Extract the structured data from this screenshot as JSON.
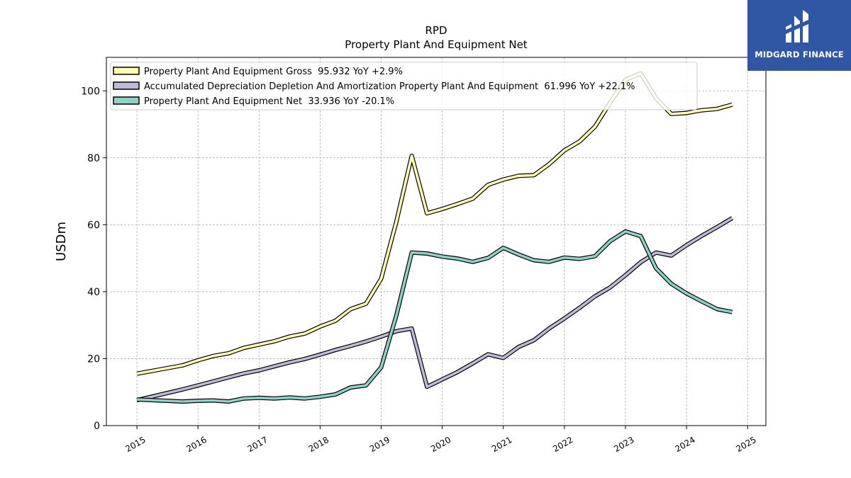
{
  "chart_data": {
    "type": "line",
    "title": "RPD",
    "subtitle": "Property Plant And Equipment Net",
    "ylabel": "USDm",
    "xlabel": "",
    "ylim": [
      0,
      110
    ],
    "xlim": [
      2014.5,
      2025.3
    ],
    "yticks": [
      0,
      20,
      40,
      60,
      80,
      100
    ],
    "xticks": [
      "2015",
      "2016",
      "2017",
      "2018",
      "2019",
      "2020",
      "2021",
      "2022",
      "2023",
      "2024",
      "2025"
    ],
    "grid": true,
    "legend_position": "top-left",
    "x": [
      2015.0,
      2015.75,
      2016.0,
      2016.25,
      2016.5,
      2016.75,
      2017.0,
      2017.25,
      2017.5,
      2017.75,
      2018.0,
      2018.25,
      2018.5,
      2018.75,
      2019.0,
      2019.25,
      2019.5,
      2019.75,
      2020.0,
      2020.25,
      2020.5,
      2020.75,
      2021.0,
      2021.25,
      2021.5,
      2021.75,
      2022.0,
      2022.25,
      2022.5,
      2022.75,
      2023.0,
      2023.25,
      2023.5,
      2023.75,
      2024.0,
      2024.25,
      2024.5,
      2024.75
    ],
    "series": [
      {
        "name": "Property Plant And Equipment Gross  95.932 YoY +2.9%",
        "color": "#ffffb3",
        "values": [
          15.5,
          18.0,
          19.5,
          20.8,
          21.6,
          23.2,
          24.2,
          25.2,
          26.6,
          27.5,
          29.6,
          31.3,
          34.8,
          36.4,
          43.9,
          61.0,
          80.6,
          63.4,
          64.7,
          66.2,
          67.8,
          71.9,
          73.5,
          74.6,
          74.8,
          78.1,
          82.2,
          84.9,
          89.3,
          96.5,
          103.3,
          105.2,
          97.8,
          93.1,
          93.4,
          94.2,
          94.6,
          95.9
        ]
      },
      {
        "name": "Accumulated Depreciation Depletion And Amortization Property Plant And Equipment  61.996 YoY +22.1%",
        "color": "#bebada",
        "values": [
          7.6,
          10.8,
          12.0,
          13.2,
          14.4,
          15.6,
          16.5,
          17.7,
          18.9,
          19.9,
          21.2,
          22.6,
          23.8,
          25.1,
          26.6,
          28.2,
          29.0,
          11.6,
          13.8,
          16.0,
          18.6,
          21.3,
          20.2,
          23.5,
          25.5,
          29.0,
          32.0,
          35.2,
          38.6,
          41.3,
          44.9,
          48.8,
          51.7,
          50.8,
          53.9,
          56.7,
          59.3,
          62.0
        ]
      },
      {
        "name": "Property Plant And Equipment Net  33.936 YoY -20.1%",
        "color": "#8dd3c7",
        "values": [
          7.8,
          7.2,
          7.4,
          7.5,
          7.2,
          8.1,
          8.3,
          8.1,
          8.4,
          8.1,
          8.6,
          9.3,
          11.4,
          12.0,
          17.4,
          33.0,
          51.7,
          51.4,
          50.5,
          49.9,
          48.9,
          50.1,
          53.1,
          51.1,
          49.4,
          48.9,
          50.2,
          49.8,
          50.6,
          55.1,
          58.0,
          56.6,
          47.0,
          42.4,
          39.5,
          37.1,
          34.8,
          33.9
        ]
      }
    ]
  },
  "logo": {
    "text": "MIDGARD FINANCE",
    "color": "#2f57a6"
  }
}
